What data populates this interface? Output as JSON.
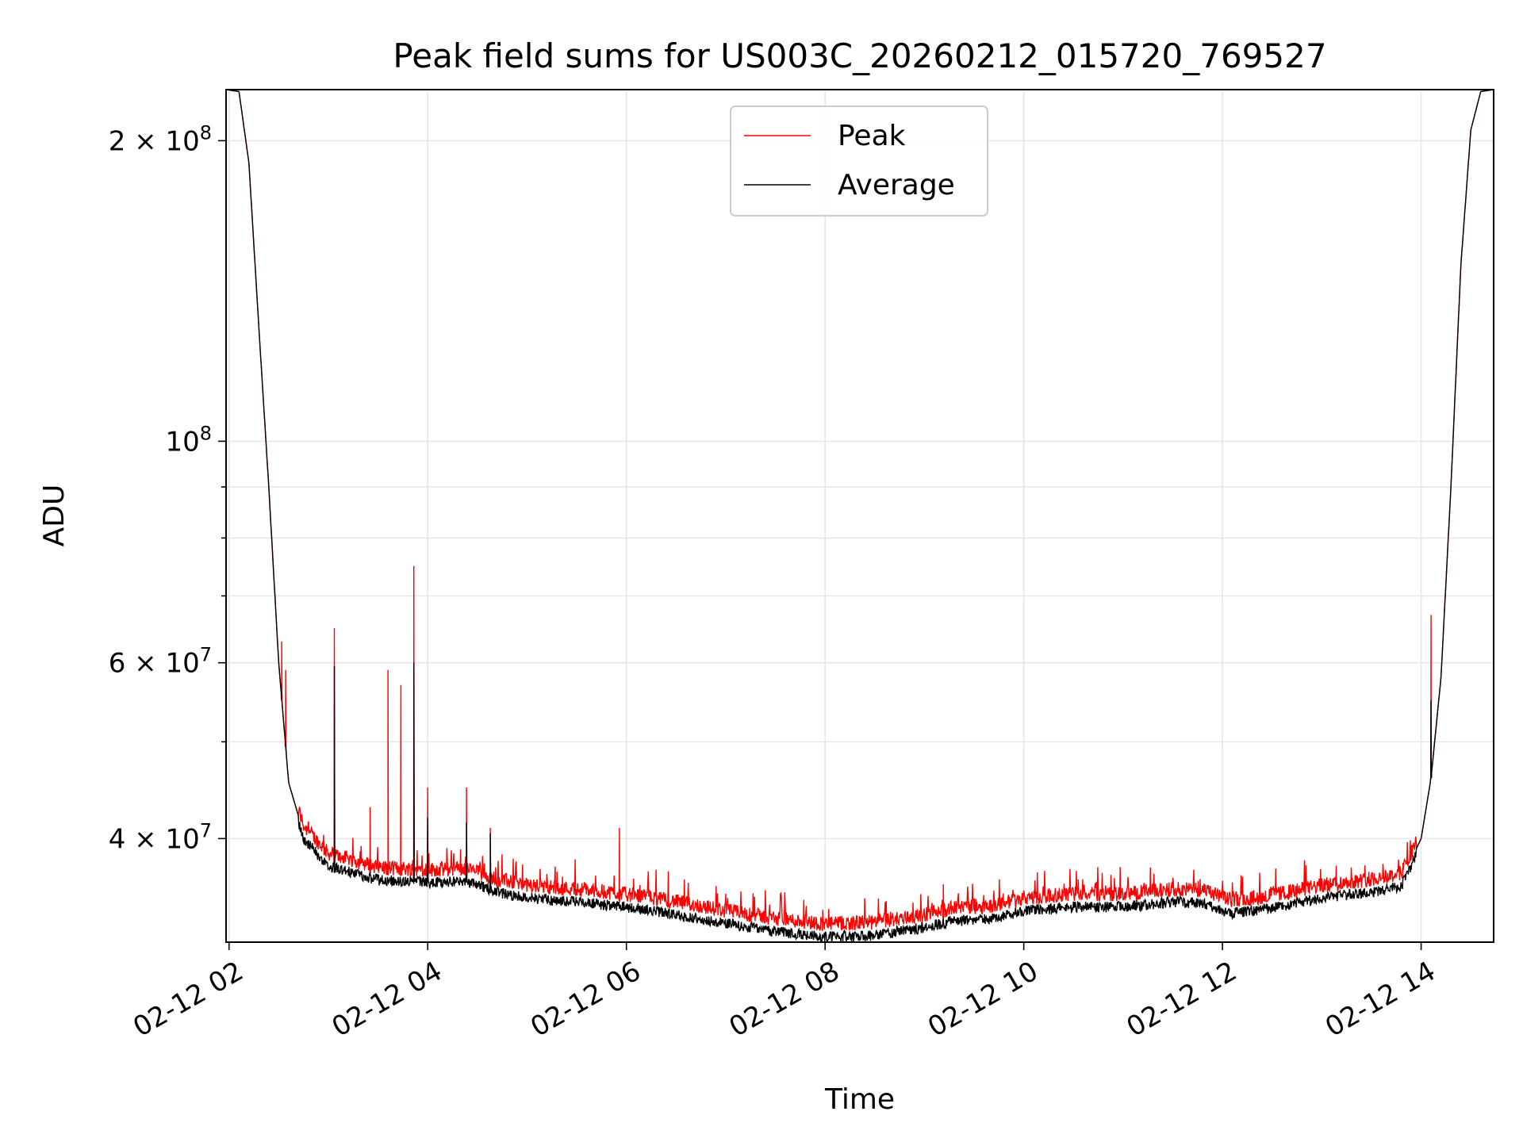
{
  "chart_data": {
    "type": "line",
    "title": "Peak field sums for US003C_20260212_015720_769527",
    "xlabel": "Time",
    "ylabel": "ADU",
    "y_scale": "log",
    "ylim": [
      31500000,
      225000000
    ],
    "xlim_hours": [
      1.97,
      14.73
    ],
    "grid": true,
    "legend_position": "top-center",
    "x_ticks": [
      {
        "hour": 2,
        "label": "02-12 02"
      },
      {
        "hour": 4,
        "label": "02-12 04"
      },
      {
        "hour": 6,
        "label": "02-12 06"
      },
      {
        "hour": 8,
        "label": "02-12 08"
      },
      {
        "hour": 10,
        "label": "02-12 10"
      },
      {
        "hour": 12,
        "label": "02-12 12"
      },
      {
        "hour": 14,
        "label": "02-12 14"
      }
    ],
    "y_ticks": [
      {
        "value": 200000000,
        "base": "2 × 10",
        "exp": "8"
      },
      {
        "value": 100000000,
        "base": "10",
        "exp": "8"
      },
      {
        "value": 60000000,
        "base": "6 × 10",
        "exp": "7"
      },
      {
        "value": 40000000,
        "base": "4 × 10",
        "exp": "7"
      }
    ],
    "y_minor_ticks": [
      90000000,
      80000000,
      70000000,
      50000000,
      30000000
    ],
    "average_curve": [
      [
        1.97,
        225000000
      ],
      [
        2.1,
        224000000
      ],
      [
        2.2,
        190000000
      ],
      [
        2.3,
        130000000
      ],
      [
        2.4,
        90000000
      ],
      [
        2.5,
        60000000
      ],
      [
        2.6,
        45500000
      ],
      [
        2.75,
        40500000
      ],
      [
        3.0,
        38000000
      ],
      [
        3.5,
        36800000
      ],
      [
        4.0,
        36600000
      ],
      [
        4.4,
        36700000
      ],
      [
        4.7,
        35800000
      ],
      [
        5.0,
        35300000
      ],
      [
        5.5,
        35000000
      ],
      [
        6.0,
        34600000
      ],
      [
        6.5,
        34000000
      ],
      [
        7.0,
        33300000
      ],
      [
        7.5,
        32700000
      ],
      [
        8.0,
        32300000
      ],
      [
        8.5,
        32400000
      ],
      [
        9.0,
        33000000
      ],
      [
        9.3,
        33500000
      ],
      [
        9.7,
        33700000
      ],
      [
        10.0,
        34300000
      ],
      [
        10.5,
        34600000
      ],
      [
        11.0,
        34600000
      ],
      [
        11.5,
        35000000
      ],
      [
        11.8,
        34900000
      ],
      [
        12.1,
        34100000
      ],
      [
        12.5,
        34500000
      ],
      [
        13.0,
        35300000
      ],
      [
        13.5,
        35800000
      ],
      [
        13.8,
        36300000
      ],
      [
        14.0,
        40000000
      ],
      [
        14.1,
        46000000
      ],
      [
        14.2,
        58000000
      ],
      [
        14.3,
        90000000
      ],
      [
        14.4,
        150000000
      ],
      [
        14.5,
        205000000
      ],
      [
        14.6,
        224000000
      ],
      [
        14.73,
        225000000
      ]
    ],
    "peak_spikes": [
      [
        2.53,
        63000000
      ],
      [
        2.57,
        59000000
      ],
      [
        3.06,
        65000000
      ],
      [
        3.42,
        43000000
      ],
      [
        3.6,
        59000000
      ],
      [
        3.73,
        57000000
      ],
      [
        3.86,
        75000000
      ],
      [
        4.0,
        45000000
      ],
      [
        4.39,
        45000000
      ],
      [
        4.63,
        41000000
      ],
      [
        5.93,
        41000000
      ],
      [
        9.19,
        36000000
      ],
      [
        14.1,
        67000000
      ]
    ],
    "average_spikes": [
      [
        3.06,
        59500000
      ],
      [
        3.86,
        60000000
      ],
      [
        4.0,
        42000000
      ],
      [
        4.39,
        41500000
      ],
      [
        4.63,
        40500000
      ],
      [
        14.1,
        55000000
      ]
    ],
    "series": [
      {
        "name": "Peak",
        "color": "#ff0000"
      },
      {
        "name": "Average",
        "color": "#000000"
      }
    ]
  }
}
